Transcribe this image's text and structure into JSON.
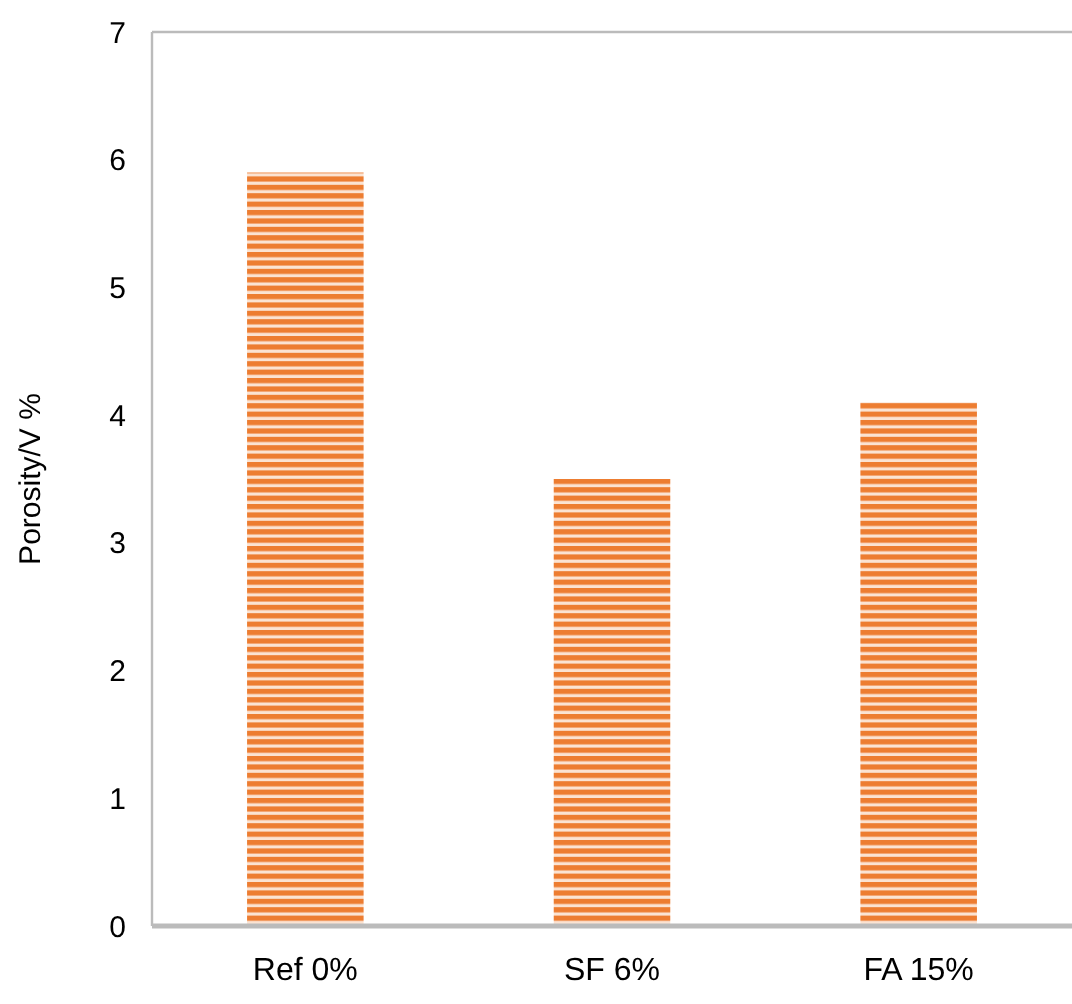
{
  "chart_data": {
    "type": "bar",
    "ylabel": "Porosity/V %",
    "categories": [
      "Ref 0%",
      "SF 6%",
      "FA 15%"
    ],
    "values": [
      5.9,
      3.5,
      4.1
    ],
    "color": "#ed7d31",
    "ylim": [
      0,
      7
    ],
    "yticks": [
      0,
      1,
      2,
      3,
      4,
      5,
      6,
      7
    ],
    "grid": false
  }
}
